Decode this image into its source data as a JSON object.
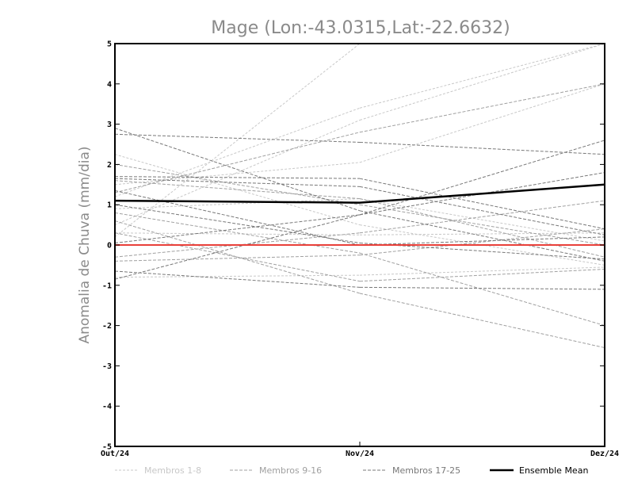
{
  "chart_data": {
    "type": "line",
    "title": "Mage (Lon:-43.0315,Lat:-22.6632)",
    "xlabel": "",
    "ylabel": "Anomalia de Chuva (mm/dia)",
    "categories": [
      "Out/24",
      "Nov/24",
      "Dez/24"
    ],
    "ylim": [
      -5,
      5
    ],
    "yticks": [
      "-5",
      "-4",
      "-3",
      "-2",
      "-1",
      "0",
      "1",
      "2",
      "3",
      "4",
      "5"
    ],
    "grid": false,
    "legend_position": "bottom",
    "series": [
      {
        "name": "Membros 1-8",
        "group": 1,
        "values": [
          0.2,
          5.0,
          5.0
        ]
      },
      {
        "name": "Membros 1-8",
        "group": 1,
        "values": [
          0.5,
          3.1,
          5.0
        ]
      },
      {
        "name": "Membros 1-8",
        "group": 1,
        "values": [
          1.2,
          3.4,
          5.0
        ]
      },
      {
        "name": "Membros 1-8",
        "group": 1,
        "values": [
          1.5,
          2.05,
          4.0
        ]
      },
      {
        "name": "Membros 1-8",
        "group": 1,
        "values": [
          0.3,
          0.25,
          0.3
        ]
      },
      {
        "name": "Membros 1-8",
        "group": 1,
        "values": [
          -0.8,
          -0.75,
          -0.55
        ]
      },
      {
        "name": "Membros 1-8",
        "group": 1,
        "values": [
          0.9,
          1.15,
          0.1
        ]
      },
      {
        "name": "Membros 1-8",
        "group": 1,
        "values": [
          2.25,
          0.5,
          -0.5
        ]
      },
      {
        "name": "Membros 9-16",
        "group": 2,
        "values": [
          2.0,
          1.0,
          0.0
        ]
      },
      {
        "name": "Membros 9-16",
        "group": 2,
        "values": [
          -0.3,
          0.3,
          1.1
        ]
      },
      {
        "name": "Membros 9-16",
        "group": 2,
        "values": [
          0.6,
          -1.2,
          -2.55
        ]
      },
      {
        "name": "Membros 9-16",
        "group": 2,
        "values": [
          0.8,
          -0.2,
          -2.0
        ]
      },
      {
        "name": "Membros 9-16",
        "group": 2,
        "values": [
          1.3,
          2.8,
          4.0
        ]
      },
      {
        "name": "Membros 9-16",
        "group": 2,
        "values": [
          -0.4,
          -0.25,
          0.4
        ]
      },
      {
        "name": "Membros 9-16",
        "group": 2,
        "values": [
          1.6,
          1.15,
          -0.3
        ]
      },
      {
        "name": "Membros 9-16",
        "group": 2,
        "values": [
          0.3,
          -0.9,
          -0.6
        ]
      },
      {
        "name": "Membros 17-25",
        "group": 3,
        "values": [
          2.75,
          2.55,
          2.25
        ]
      },
      {
        "name": "Membros 17-25",
        "group": 3,
        "values": [
          1.7,
          1.65,
          0.4
        ]
      },
      {
        "name": "Membros 17-25",
        "group": 3,
        "values": [
          1.65,
          1.45,
          0.25
        ]
      },
      {
        "name": "Membros 17-25",
        "group": 3,
        "values": [
          -0.65,
          -1.05,
          -1.1
        ]
      },
      {
        "name": "Membros 17-25",
        "group": 3,
        "values": [
          -0.85,
          0.75,
          2.6
        ]
      },
      {
        "name": "Membros 17-25",
        "group": 3,
        "values": [
          0.05,
          0.75,
          1.8
        ]
      },
      {
        "name": "Membros 17-25",
        "group": 3,
        "values": [
          2.9,
          0.85,
          -0.4
        ]
      },
      {
        "name": "Membros 17-25",
        "group": 3,
        "values": [
          1.35,
          0.0,
          0.2
        ]
      },
      {
        "name": "Membros 17-25",
        "group": 3,
        "values": [
          1.0,
          0.05,
          -0.35
        ]
      }
    ],
    "ensemble_mean": {
      "name": "Ensemble Mean",
      "values": [
        1.1,
        1.05,
        1.5
      ]
    },
    "reference_line": {
      "name": "zero",
      "value": 0
    },
    "legend": [
      {
        "label": "Membros 1-8"
      },
      {
        "label": "Membros 9-16"
      },
      {
        "label": "Membros 17-25"
      },
      {
        "label": "Ensemble Mean"
      }
    ],
    "colors": {
      "group1": "#c8c8c8",
      "group2": "#a0a0a0",
      "group3": "#787878",
      "mean": "#000000",
      "zero": "#e8403a"
    }
  }
}
